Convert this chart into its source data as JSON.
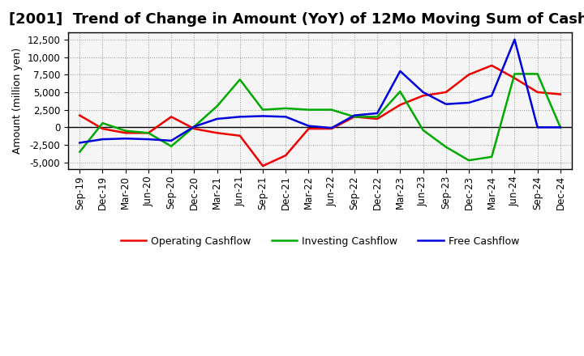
{
  "title": "[2001]  Trend of Change in Amount (YoY) of 12Mo Moving Sum of Cashflows",
  "ylabel": "Amount (million yen)",
  "x_labels": [
    "Sep-19",
    "Dec-19",
    "Mar-20",
    "Jun-20",
    "Sep-20",
    "Dec-20",
    "Mar-21",
    "Jun-21",
    "Sep-21",
    "Dec-21",
    "Mar-22",
    "Jun-22",
    "Sep-22",
    "Dec-22",
    "Mar-23",
    "Jun-23",
    "Sep-23",
    "Dec-23",
    "Mar-24",
    "Jun-24",
    "Sep-24",
    "Dec-24"
  ],
  "operating_cashflow": [
    1700,
    -200,
    -800,
    -800,
    1500,
    -200,
    -800,
    -1200,
    -5500,
    -4000,
    -200,
    -200,
    1500,
    1200,
    3200,
    4500,
    5000,
    7500,
    8800,
    7000,
    5000,
    4700
  ],
  "investing_cashflow": [
    -3500,
    600,
    -500,
    -800,
    -2700,
    100,
    3000,
    6800,
    2500,
    2700,
    2500,
    2500,
    1500,
    1500,
    5100,
    -400,
    -2800,
    -4700,
    -4200,
    7600,
    7600,
    0
  ],
  "free_cashflow": [
    -2200,
    -1700,
    -1600,
    -1700,
    -1900,
    100,
    1200,
    1500,
    1600,
    1500,
    200,
    -100,
    1700,
    2000,
    8000,
    5000,
    3300,
    3500,
    4500,
    12500,
    0,
    0
  ],
  "operating_color": "#ee0000",
  "investing_color": "#00aa00",
  "free_color": "#0000dd",
  "ylim": [
    -6000,
    13500
  ],
  "yticks": [
    -5000,
    -2500,
    0,
    2500,
    5000,
    7500,
    10000,
    12500
  ],
  "bg_color": "#ffffff",
  "plot_bg_color": "#f5f5f5",
  "grid_color": "#999999",
  "title_fontsize": 13,
  "axis_label_fontsize": 9,
  "tick_fontsize": 8.5,
  "legend_fontsize": 9,
  "line_width": 1.8
}
